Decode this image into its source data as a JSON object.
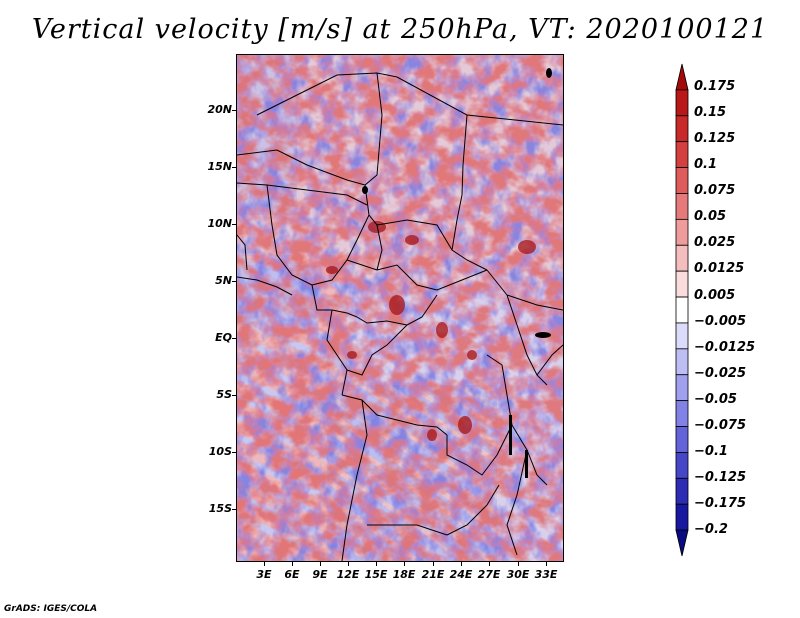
{
  "title": "Vertical velocity [m/s] at 250hPa, VT: 2020100121",
  "map": {
    "latitude_labels": [
      "20N",
      "15N",
      "10N",
      "5N",
      "EQ",
      "5S",
      "10S",
      "15S"
    ],
    "longitude_labels": [
      "3E",
      "6E",
      "9E",
      "12E",
      "15E",
      "18E",
      "21E",
      "24E",
      "27E",
      "30E",
      "33E"
    ],
    "field": "Vertical velocity at 250hPa"
  },
  "colorbar": {
    "labels": [
      "0.175",
      "0.15",
      "0.125",
      "0.1",
      "0.075",
      "0.05",
      "0.025",
      "0.0125",
      "0.005",
      "−0.005",
      "−0.0125",
      "−0.025",
      "−0.05",
      "−0.075",
      "−0.1",
      "−0.125",
      "−0.175",
      "−0.2"
    ],
    "colors": [
      "#a50a0a",
      "#b81818",
      "#c82a2a",
      "#d44040",
      "#de5c5c",
      "#e67a7a",
      "#ee9c9c",
      "#f5bebe",
      "#fadcdc",
      "#ffffff",
      "#dcdcfa",
      "#bebef5",
      "#a0a0ee",
      "#8282e6",
      "#6464da",
      "#4646c8",
      "#2c2cb4",
      "#1818a0",
      "#0a0a82"
    ]
  },
  "footer": "GrADS: IGES/COLA"
}
